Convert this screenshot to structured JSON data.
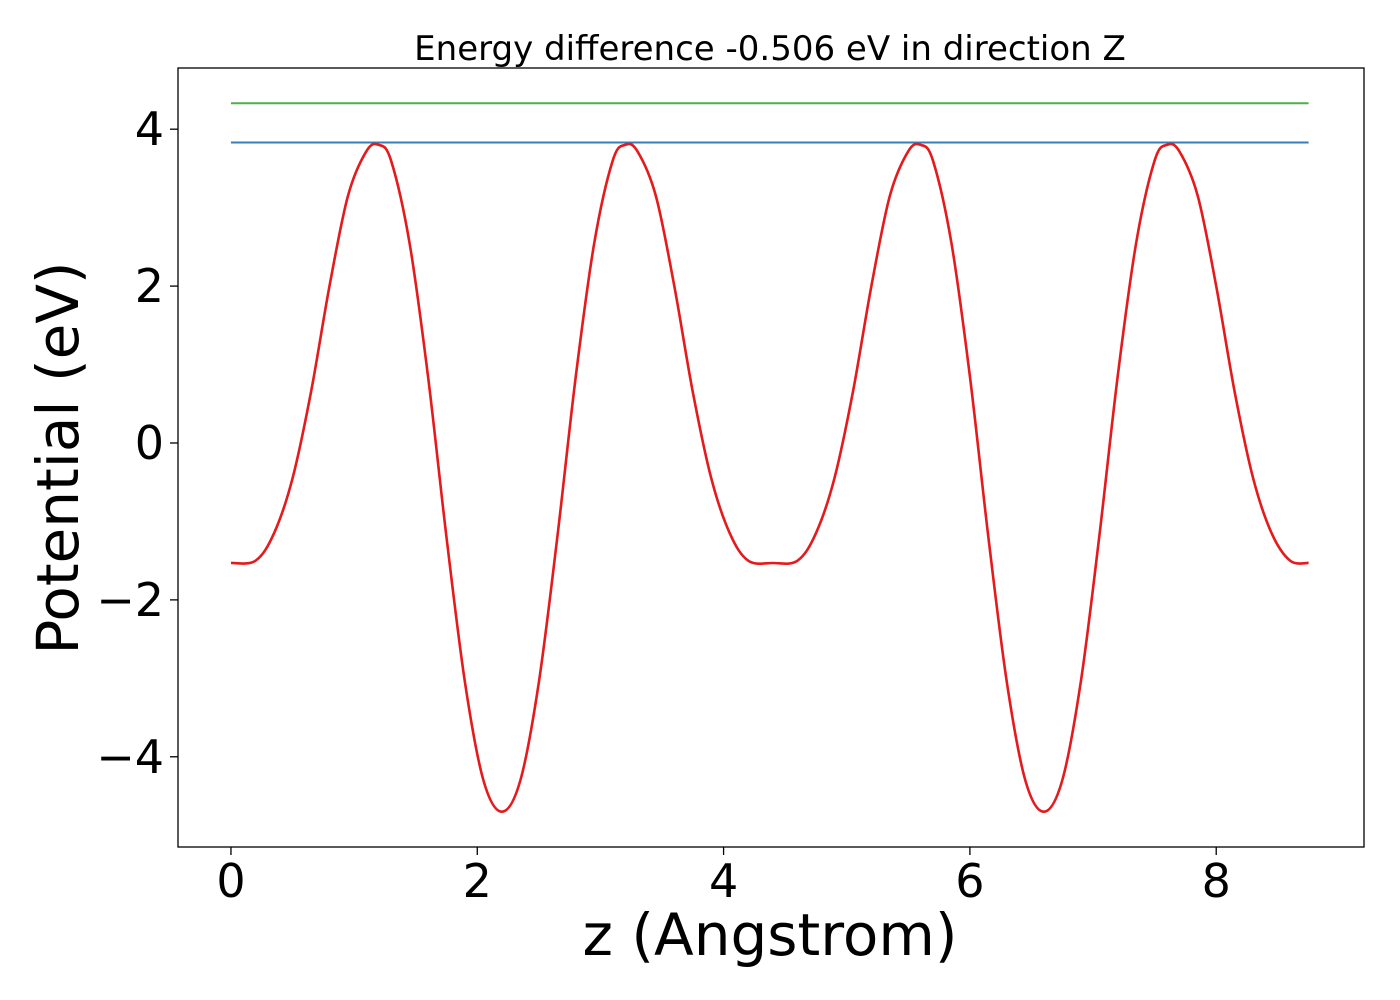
{
  "chart_data": {
    "type": "line",
    "title": "Energy difference -0.506 eV in direction Z",
    "xlabel": "z (Angstrom)",
    "ylabel": "Potential (eV)",
    "xlim": [
      -0.43,
      9.2
    ],
    "ylim": [
      -5.15,
      4.78
    ],
    "xticks": [
      0,
      2,
      4,
      6,
      8
    ],
    "xtick_labels": [
      "0",
      "2",
      "4",
      "6",
      "8"
    ],
    "yticks": [
      -4,
      -2,
      0,
      2,
      4
    ],
    "ytick_labels": [
      "−4",
      "−2",
      "0",
      "2",
      "4"
    ],
    "grid": false,
    "colors": {
      "potential": "#e41a1c",
      "level_high": "#4daf4a",
      "level_low": "#377eb8"
    },
    "hlines": [
      {
        "y": 4.33,
        "x": [
          0,
          8.75
        ],
        "color": "#4daf4a"
      },
      {
        "y": 3.83,
        "x": [
          0,
          8.75
        ],
        "color": "#377eb8"
      }
    ],
    "series": [
      {
        "color": "#e41a1c",
        "x": [
          0.0,
          0.2,
          0.35,
          0.5,
          0.65,
          0.8,
          0.95,
          1.1,
          1.2,
          1.3,
          1.45,
          1.6,
          1.75,
          1.9,
          2.05,
          2.2,
          2.35,
          2.5,
          2.65,
          2.8,
          2.95,
          3.1,
          3.2,
          3.3,
          3.45,
          3.6,
          3.75,
          3.9,
          4.05,
          4.2,
          4.4,
          4.6,
          4.75,
          4.9,
          5.05,
          5.2,
          5.35,
          5.5,
          5.6,
          5.7,
          5.85,
          6.0,
          6.15,
          6.3,
          6.45,
          6.6,
          6.75,
          6.9,
          7.05,
          7.2,
          7.35,
          7.5,
          7.6,
          7.7,
          7.85,
          8.0,
          8.15,
          8.3,
          8.45,
          8.6,
          8.75
        ],
        "y": [
          -1.53,
          -1.5,
          -1.15,
          -0.45,
          0.65,
          2.0,
          3.15,
          3.72,
          3.8,
          3.6,
          2.55,
          0.85,
          -1.2,
          -3.05,
          -4.3,
          -4.7,
          -4.3,
          -3.05,
          -1.2,
          0.85,
          2.55,
          3.6,
          3.8,
          3.72,
          3.15,
          2.0,
          0.65,
          -0.45,
          -1.15,
          -1.5,
          -1.53,
          -1.5,
          -1.15,
          -0.45,
          0.65,
          2.0,
          3.15,
          3.72,
          3.8,
          3.6,
          2.55,
          0.85,
          -1.2,
          -3.05,
          -4.3,
          -4.7,
          -4.3,
          -3.05,
          -1.2,
          0.85,
          2.55,
          3.6,
          3.8,
          3.72,
          3.15,
          2.0,
          0.65,
          -0.45,
          -1.15,
          -1.5,
          -1.53
        ]
      }
    ]
  }
}
